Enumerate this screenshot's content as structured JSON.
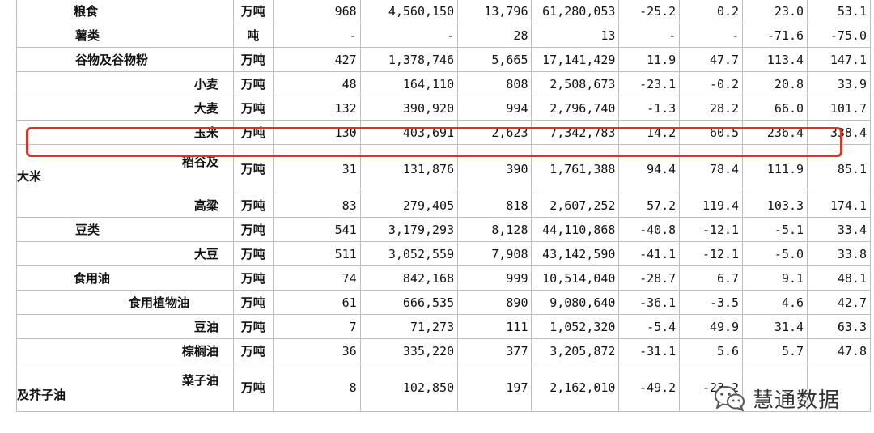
{
  "rows": [
    {
      "name": "粮食",
      "unit": "万吨",
      "v": [
        "968",
        "4,560,150",
        "13,796",
        "61,280,053",
        "-25.2",
        "0.2",
        "23.0",
        "53.1"
      ]
    },
    {
      "name": "薯类",
      "unit": "吨",
      "v": [
        "-",
        "-",
        "28",
        "13",
        "-",
        "-",
        "-71.6",
        "-75.0"
      ]
    },
    {
      "name": "谷物及谷物粉",
      "unit": "万吨",
      "v": [
        "427",
        "1,378,746",
        "5,665",
        "17,141,429",
        "11.9",
        "47.7",
        "113.4",
        "147.1"
      ]
    },
    {
      "name": "小麦",
      "unit": "万吨",
      "v": [
        "48",
        "164,110",
        "808",
        "2,508,673",
        "-23.1",
        "-0.2",
        "20.8",
        "33.9"
      ]
    },
    {
      "name": "大麦",
      "unit": "万吨",
      "v": [
        "132",
        "390,920",
        "994",
        "2,796,740",
        "-1.3",
        "28.2",
        "66.0",
        "101.7"
      ]
    },
    {
      "name": "玉米",
      "unit": "万吨",
      "v": [
        "130",
        "403,691",
        "2,623",
        "7,342,783",
        "14.2",
        "60.5",
        "236.4",
        "338.4"
      ]
    },
    {
      "name_a": "稻谷及",
      "name_b": "大米",
      "unit": "万吨",
      "v": [
        "31",
        "131,876",
        "390",
        "1,761,388",
        "94.4",
        "78.4",
        "111.9",
        "85.1"
      ]
    },
    {
      "name": "高粱",
      "unit": "万吨",
      "v": [
        "83",
        "279,405",
        "818",
        "2,607,252",
        "57.2",
        "119.4",
        "103.3",
        "174.1"
      ]
    },
    {
      "name": "豆类",
      "unit": "万吨",
      "v": [
        "541",
        "3,179,293",
        "8,128",
        "44,110,868",
        "-40.8",
        "-12.1",
        "-5.1",
        "33.4"
      ]
    },
    {
      "name": "大豆",
      "unit": "万吨",
      "v": [
        "511",
        "3,052,559",
        "7,908",
        "43,142,590",
        "-41.1",
        "-12.1",
        "-5.0",
        "33.8"
      ]
    },
    {
      "name": "食用油",
      "unit": "万吨",
      "v": [
        "74",
        "842,168",
        "999",
        "10,514,040",
        "-28.7",
        "6.7",
        "9.1",
        "48.1"
      ]
    },
    {
      "name": "食用植物油",
      "unit": "万吨",
      "v": [
        "61",
        "666,535",
        "890",
        "9,080,640",
        "-36.1",
        "-3.5",
        "4.6",
        "42.7"
      ]
    },
    {
      "name": "豆油",
      "unit": "万吨",
      "v": [
        "7",
        "71,273",
        "111",
        "1,052,320",
        "-5.4",
        "49.9",
        "31.4",
        "63.3"
      ]
    },
    {
      "name": "棕榈油",
      "unit": "万吨",
      "v": [
        "36",
        "335,220",
        "377",
        "3,205,872",
        "-31.1",
        "5.6",
        "5.7",
        "47.8"
      ]
    },
    {
      "name_a": "菜子油",
      "name_b": "及芥子油",
      "unit": "万吨",
      "v": [
        "8",
        "102,850",
        "197",
        "2,162,010",
        "-49.2",
        "-23.2",
        "",
        ""
      ]
    }
  ],
  "watermark": {
    "text": "慧通数据",
    "icon": "wechat-logo-icon"
  },
  "colors": {
    "highlight": "#d9342b",
    "grid": "#bfbfbf"
  }
}
